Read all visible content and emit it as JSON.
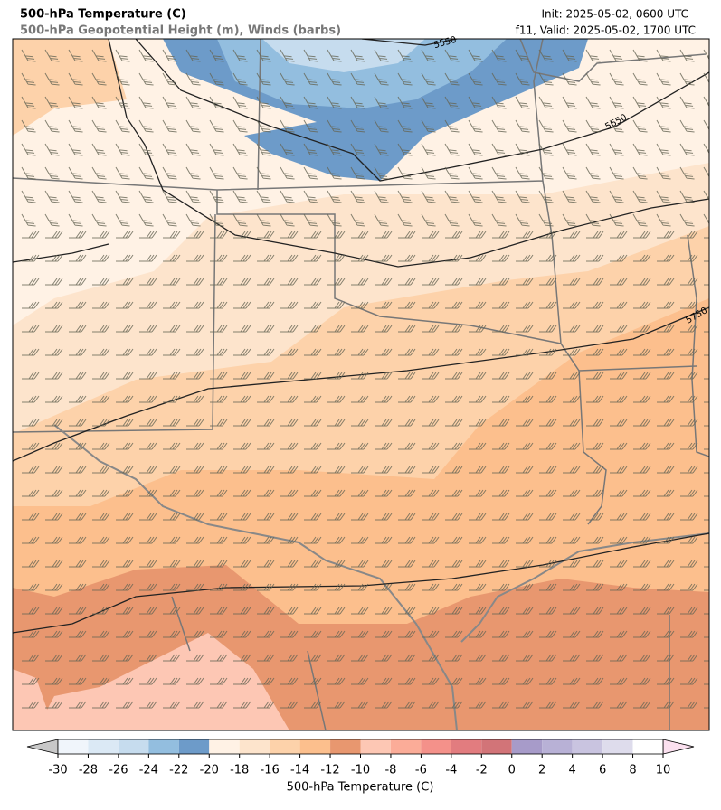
{
  "header": {
    "title": "500-hPa Temperature (C)",
    "subtitle": "500-hPa Geopotential Height (m), Winds (barbs)",
    "init": "Init: 2025-05-02, 0600 UTC",
    "valid": "f11, Valid: 2025-05-02, 1700 UTC"
  },
  "map": {
    "contour_levels": [
      5550,
      5650,
      5750
    ]
  },
  "colorbar": {
    "label": "500-hPa Temperature (C)",
    "ticks": [
      -30,
      -28,
      -26,
      -24,
      -22,
      -20,
      -18,
      -16,
      -14,
      -12,
      -10,
      -8,
      -6,
      -4,
      -2,
      0,
      2,
      4,
      6,
      8,
      10
    ],
    "colors": [
      "#f0f5fb",
      "#dbe9f5",
      "#c6dcee",
      "#93bedf",
      "#6d9bc9",
      "#fff2e5",
      "#fde4cc",
      "#fdd2aa",
      "#fcbf8d",
      "#e8976f",
      "#fdc7b4",
      "#fbac98",
      "#f4918a",
      "#e27c7f",
      "#d27478",
      "#a79bc9",
      "#b8b1d6",
      "#c9c4e0",
      "#dedcec",
      "#ffffff"
    ],
    "under_color": "#c8c8c8",
    "over_color": "#fbe0ef"
  }
}
